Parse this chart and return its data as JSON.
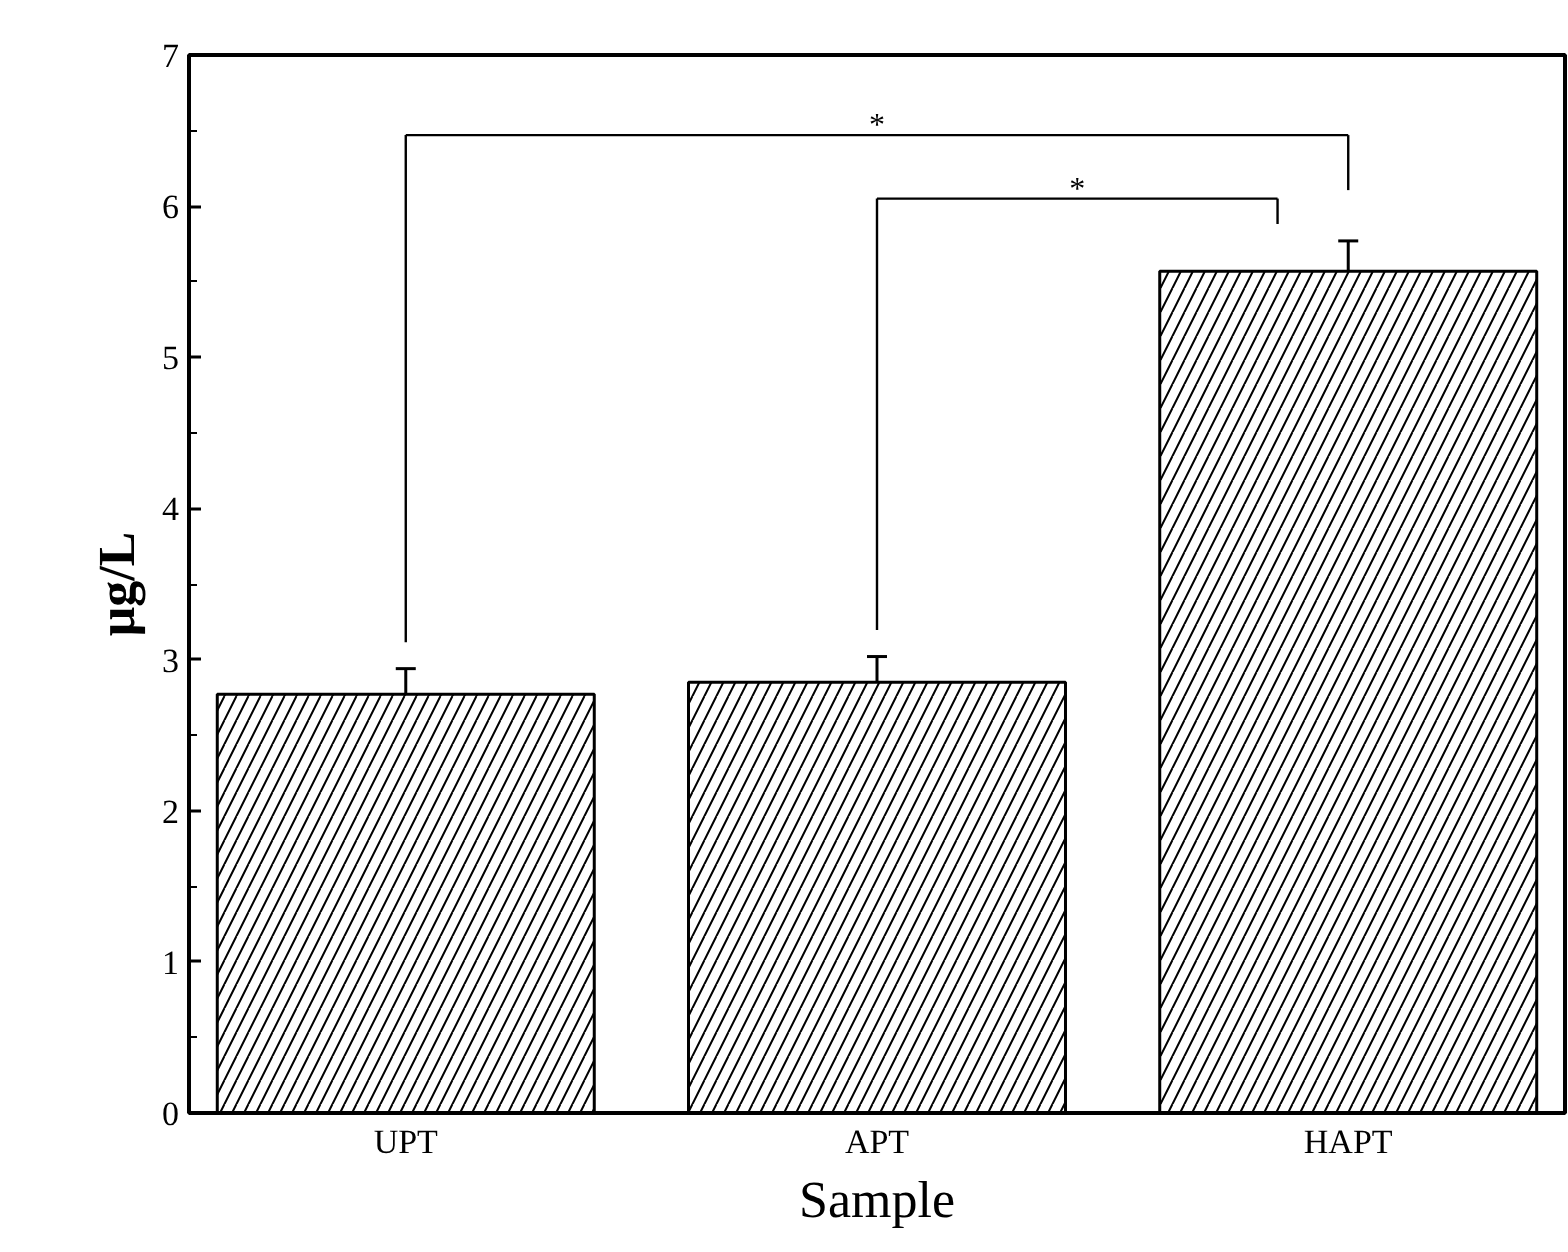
{
  "chart_data": {
    "type": "bar",
    "xlabel": "Sample",
    "ylabel": "μg/L",
    "categories": [
      "UPT",
      "APT",
      "HAPT"
    ],
    "values": [
      2.77,
      2.85,
      5.57
    ],
    "errors": [
      0.17,
      0.17,
      0.2
    ],
    "color": "#000000",
    "ylim": [
      0,
      7
    ],
    "yticks": [
      0,
      1,
      2,
      3,
      4,
      5,
      6,
      7
    ],
    "annotations": [
      "*",
      "*"
    ]
  }
}
